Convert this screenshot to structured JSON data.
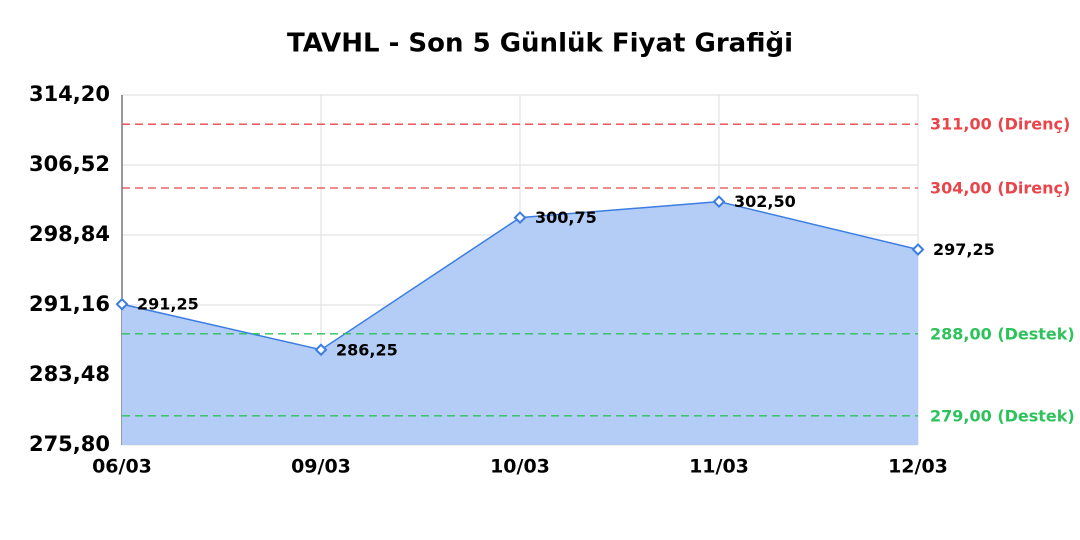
{
  "chart_data": {
    "type": "area",
    "title": "TAVHL - Son 5 Günlük Fiyat Grafiği",
    "categories": [
      "06/03",
      "09/03",
      "10/03",
      "11/03",
      "12/03"
    ],
    "values": [
      291.25,
      286.25,
      300.75,
      302.5,
      297.25
    ],
    "value_labels": [
      "291,25",
      "286,25",
      "300,75",
      "302,50",
      "297,25"
    ],
    "color": "#3b7de0",
    "fill": "#b3cdf7",
    "ylim": [
      275.8,
      314.2
    ],
    "yticks": [
      {
        "value": 275.8,
        "label": "275,80"
      },
      {
        "value": 283.48,
        "label": "283,48"
      },
      {
        "value": 291.16,
        "label": "291,16"
      },
      {
        "value": 298.84,
        "label": "298,84"
      },
      {
        "value": 306.52,
        "label": "306,52"
      },
      {
        "value": 314.2,
        "label": "314,20"
      }
    ],
    "grid": true,
    "reference_lines": [
      {
        "value": 311,
        "label": "311,00 (Direnç)",
        "color": "#e8464a"
      },
      {
        "value": 304,
        "label": "304,00 (Direnç)",
        "color": "#e8464a"
      },
      {
        "value": 288,
        "label": "288,00 (Destek)",
        "color": "#2ec25c"
      },
      {
        "value": 279,
        "label": "279,00 (Destek)",
        "color": "#2ec25c"
      }
    ]
  }
}
